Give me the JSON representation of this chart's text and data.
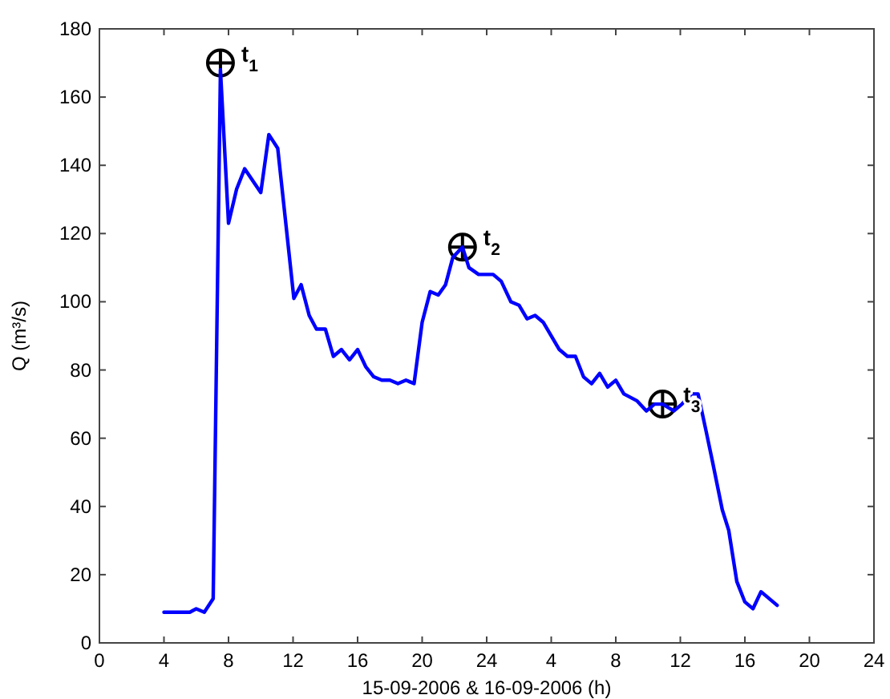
{
  "chart_data": {
    "type": "line",
    "xlabel": "15-09-2006 & 16-09-2006 (h)",
    "ylabel": "Q (m³/s)",
    "xlim": [
      "2006-09-15T00:00",
      "2006-09-17T00:00"
    ],
    "xticks": [
      {
        "value": "2006-09-15T00:00",
        "label": "0"
      },
      {
        "value": "2006-09-15T04:00",
        "label": "4"
      },
      {
        "value": "2006-09-15T08:00",
        "label": "8"
      },
      {
        "value": "2006-09-15T12:00",
        "label": "12"
      },
      {
        "value": "2006-09-15T16:00",
        "label": "16"
      },
      {
        "value": "2006-09-15T20:00",
        "label": "20"
      },
      {
        "value": "2006-09-16T00:00",
        "label": "24"
      },
      {
        "value": "2006-09-16T04:00",
        "label": "4"
      },
      {
        "value": "2006-09-16T08:00",
        "label": "8"
      },
      {
        "value": "2006-09-16T12:00",
        "label": "12"
      },
      {
        "value": "2006-09-16T16:00",
        "label": "16"
      },
      {
        "value": "2006-09-16T20:00",
        "label": "20"
      },
      {
        "value": "2006-09-17T00:00",
        "label": "24"
      }
    ],
    "ylim": [
      0,
      180
    ],
    "yticks": [
      0,
      20,
      40,
      60,
      80,
      100,
      120,
      140,
      160,
      180
    ],
    "series": [
      {
        "color": "#0000ff",
        "x": [
          "2006-09-15T04:00",
          "2006-09-15T05:36",
          "2006-09-15T06:00",
          "2006-09-15T06:30",
          "2006-09-15T07:03",
          "2006-09-15T07:30",
          "2006-09-15T08:00",
          "2006-09-15T08:30",
          "2006-09-15T09:00",
          "2006-09-15T10:00",
          "2006-09-15T10:30",
          "2006-09-15T11:03",
          "2006-09-15T11:33",
          "2006-09-15T12:03",
          "2006-09-15T12:30",
          "2006-09-15T13:00",
          "2006-09-15T13:27",
          "2006-09-15T14:00",
          "2006-09-15T14:30",
          "2006-09-15T15:00",
          "2006-09-15T15:30",
          "2006-09-15T16:00",
          "2006-09-15T16:30",
          "2006-09-15T17:00",
          "2006-09-15T17:30",
          "2006-09-15T18:00",
          "2006-09-15T18:30",
          "2006-09-15T19:00",
          "2006-09-15T19:30",
          "2006-09-15T20:00",
          "2006-09-15T20:30",
          "2006-09-15T21:00",
          "2006-09-15T21:27",
          "2006-09-15T21:54",
          "2006-09-15T22:30",
          "2006-09-15T22:54",
          "2006-09-15T23:30",
          "2006-09-16T00:24",
          "2006-09-16T00:54",
          "2006-09-16T01:30",
          "2006-09-16T02:00",
          "2006-09-16T02:30",
          "2006-09-16T03:00",
          "2006-09-16T03:30",
          "2006-09-16T04:30",
          "2006-09-16T05:00",
          "2006-09-16T05:30",
          "2006-09-16T06:00",
          "2006-09-16T06:30",
          "2006-09-16T07:00",
          "2006-09-16T07:30",
          "2006-09-16T08:00",
          "2006-09-16T08:30",
          "2006-09-16T09:18",
          "2006-09-16T09:54",
          "2006-09-16T10:24",
          "2006-09-16T10:54",
          "2006-09-16T11:36",
          "2006-09-16T12:06",
          "2006-09-16T12:42",
          "2006-09-16T13:06",
          "2006-09-16T13:36",
          "2006-09-16T14:00",
          "2006-09-16T14:36",
          "2006-09-16T15:00",
          "2006-09-16T15:30",
          "2006-09-16T16:00",
          "2006-09-16T16:30",
          "2006-09-16T17:00",
          "2006-09-16T18:00"
        ],
        "values": [
          9,
          9,
          10,
          9,
          13,
          168,
          123,
          133,
          139,
          132,
          149,
          145,
          123,
          101,
          105,
          96,
          92,
          92,
          84,
          86,
          83,
          86,
          81,
          78,
          77,
          77,
          76,
          77,
          76,
          94,
          103,
          102,
          105,
          113,
          116,
          110,
          108,
          108,
          106,
          100,
          99,
          95,
          96,
          94,
          86,
          84,
          84,
          78,
          76,
          79,
          75,
          77,
          73,
          71,
          68,
          70,
          70,
          68,
          70,
          73,
          73,
          62,
          53,
          39,
          33,
          18,
          12,
          10,
          15,
          11
        ]
      }
    ],
    "annotations": [
      {
        "text": "t$_{1}$",
        "x": "2006-09-15T07:30",
        "y": 170
      },
      {
        "text": "t$_{2}$",
        "x": "2006-09-15T22:30",
        "y": 116
      },
      {
        "text": "t$_{3}$",
        "x": "2006-09-16T10:54",
        "y": 70
      }
    ]
  }
}
